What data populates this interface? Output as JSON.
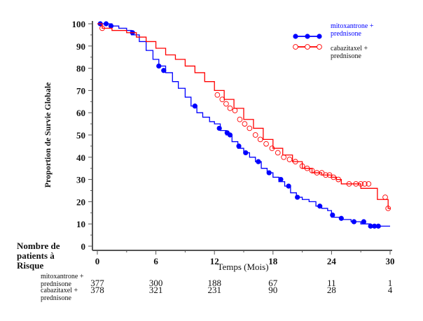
{
  "chart_data": {
    "type": "line",
    "subtype": "kaplan-meier",
    "title": "",
    "xlabel": "Temps (Mois)",
    "ylabel": "Proportion de Survie Globale",
    "xlim": [
      0,
      30
    ],
    "ylim": [
      0,
      100
    ],
    "x_ticks": [
      0,
      6,
      12,
      18,
      24,
      30
    ],
    "y_ticks": [
      0,
      10,
      20,
      30,
      40,
      50,
      60,
      70,
      80,
      90,
      100
    ],
    "grid": false,
    "legend_position": "top-right",
    "series": [
      {
        "name": "mitoxantrone + prednisone",
        "color": "#0000ff",
        "marker": "filled-circle",
        "points": [
          [
            0,
            100
          ],
          [
            0.8,
            100
          ],
          [
            1.5,
            99
          ],
          [
            2.2,
            98
          ],
          [
            3,
            97
          ],
          [
            3.5,
            95
          ],
          [
            4.3,
            92
          ],
          [
            5,
            88
          ],
          [
            5.7,
            84
          ],
          [
            6.3,
            81
          ],
          [
            7,
            78
          ],
          [
            7.7,
            74
          ],
          [
            8.3,
            71
          ],
          [
            9,
            67
          ],
          [
            9.6,
            63
          ],
          [
            10.2,
            60
          ],
          [
            10.8,
            58
          ],
          [
            11.5,
            56
          ],
          [
            12,
            55
          ],
          [
            12.6,
            52
          ],
          [
            13.2,
            50
          ],
          [
            13.8,
            47
          ],
          [
            14.4,
            44
          ],
          [
            15,
            42
          ],
          [
            15.6,
            40
          ],
          [
            16.2,
            38
          ],
          [
            16.8,
            35
          ],
          [
            17.4,
            33
          ],
          [
            18,
            31
          ],
          [
            18.6,
            29
          ],
          [
            19.2,
            27
          ],
          [
            19.8,
            24
          ],
          [
            20.4,
            22
          ],
          [
            21,
            21
          ],
          [
            21.7,
            20
          ],
          [
            22.4,
            18
          ],
          [
            23,
            17
          ],
          [
            23.6,
            16
          ],
          [
            24,
            13
          ],
          [
            25,
            12
          ],
          [
            26,
            11
          ],
          [
            27,
            10
          ],
          [
            28,
            9
          ],
          [
            30,
            9
          ]
        ],
        "censor_marks": [
          [
            0.3,
            100
          ],
          [
            0.9,
            100
          ],
          [
            1.4,
            99
          ],
          [
            3.6,
            96
          ],
          [
            6.3,
            81
          ],
          [
            6.8,
            79
          ],
          [
            10,
            63
          ],
          [
            12.5,
            53
          ],
          [
            13.3,
            51
          ],
          [
            13.6,
            50
          ],
          [
            14.5,
            45
          ],
          [
            15.2,
            42
          ],
          [
            16.5,
            38
          ],
          [
            17.6,
            33
          ],
          [
            18.8,
            30
          ],
          [
            19.6,
            27
          ],
          [
            20.5,
            22
          ],
          [
            22.8,
            18
          ],
          [
            24.1,
            14
          ],
          [
            25,
            12.5
          ],
          [
            26.3,
            11
          ],
          [
            27.3,
            11
          ],
          [
            28,
            9
          ],
          [
            28.4,
            9
          ],
          [
            28.8,
            9
          ]
        ],
        "at_risk": [
          377,
          300,
          188,
          67,
          11,
          1
        ]
      },
      {
        "name": "cabazitaxel + prednisone",
        "color": "#ff0000",
        "marker": "open-circle",
        "points": [
          [
            0,
            100
          ],
          [
            0.5,
            98
          ],
          [
            1.5,
            97
          ],
          [
            3,
            96
          ],
          [
            4,
            94
          ],
          [
            5,
            92
          ],
          [
            6,
            89
          ],
          [
            7,
            86
          ],
          [
            8,
            84
          ],
          [
            9,
            81
          ],
          [
            10,
            78
          ],
          [
            11,
            74
          ],
          [
            12,
            70
          ],
          [
            13,
            66
          ],
          [
            14,
            62
          ],
          [
            15,
            57
          ],
          [
            16,
            53
          ],
          [
            17,
            48
          ],
          [
            18,
            44
          ],
          [
            19,
            41
          ],
          [
            20,
            38
          ],
          [
            21,
            35
          ],
          [
            22,
            33
          ],
          [
            23,
            32
          ],
          [
            24,
            31
          ],
          [
            24.5,
            30
          ],
          [
            25,
            28
          ],
          [
            26,
            28
          ],
          [
            27,
            26
          ],
          [
            28.5,
            26
          ],
          [
            28.7,
            21
          ],
          [
            29.5,
            21
          ],
          [
            29.8,
            17
          ],
          [
            30,
            17
          ]
        ],
        "censor_marks": [
          [
            0.5,
            98
          ],
          [
            12.3,
            68
          ],
          [
            12.8,
            66
          ],
          [
            13.2,
            64
          ],
          [
            13.6,
            62
          ],
          [
            14.1,
            61
          ],
          [
            14.6,
            57
          ],
          [
            15.1,
            55
          ],
          [
            15.6,
            53
          ],
          [
            16.2,
            50
          ],
          [
            16.7,
            48
          ],
          [
            17.3,
            46
          ],
          [
            17.9,
            44
          ],
          [
            18.5,
            42
          ],
          [
            19.1,
            40
          ],
          [
            19.7,
            39
          ],
          [
            20.3,
            38
          ],
          [
            21,
            36
          ],
          [
            21.5,
            35
          ],
          [
            22,
            34
          ],
          [
            22.5,
            33
          ],
          [
            23,
            33
          ],
          [
            23.4,
            32
          ],
          [
            23.8,
            32
          ],
          [
            24.2,
            31
          ],
          [
            24.7,
            30
          ],
          [
            25.8,
            28
          ],
          [
            26.5,
            28
          ],
          [
            27,
            28
          ],
          [
            27.4,
            28
          ],
          [
            27.8,
            28
          ],
          [
            29.5,
            22
          ],
          [
            29.8,
            17
          ]
        ],
        "at_risk": [
          378,
          321,
          231,
          90,
          28,
          4
        ]
      }
    ],
    "risk_table": {
      "heading": [
        "Nombre de",
        "patients à",
        "Risque"
      ],
      "rows": [
        {
          "label": [
            "mitoxantrone +",
            "prednisone"
          ],
          "values": [
            377,
            300,
            188,
            67,
            11,
            1
          ]
        },
        {
          "label": [
            "cabazitaxel +",
            "prednisone"
          ],
          "values": [
            378,
            321,
            231,
            90,
            28,
            4
          ]
        }
      ]
    },
    "legend": [
      {
        "label": [
          "mitoxantrone +",
          "prednisone"
        ],
        "color": "#0000ff",
        "text_color": "#0000ff"
      },
      {
        "label": [
          "cabazitaxel +",
          "prednisone"
        ],
        "color": "#ff0000",
        "text_color": "#111111"
      }
    ]
  }
}
